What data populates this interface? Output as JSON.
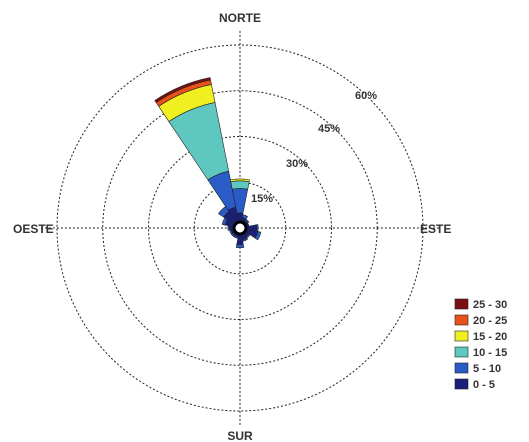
{
  "chart_data": {
    "type": "wind-rose",
    "directions": {
      "north": "NORTE",
      "east": "ESTE",
      "south": "SUR",
      "west": "OESTE"
    },
    "ring_labels": [
      "15%",
      "30%",
      "45%",
      "60%"
    ],
    "ring_values": [
      15,
      30,
      45,
      60
    ],
    "legend": [
      {
        "label": "25 - 30",
        "color": "#7a1010"
      },
      {
        "label": "20 - 25",
        "color": "#e8521a"
      },
      {
        "label": "15 - 20",
        "color": "#f0f020"
      },
      {
        "label": "10 - 15",
        "color": "#5ec8c0"
      },
      {
        "label": "5 - 10",
        "color": "#2a5cc8"
      },
      {
        "label": "0 - 5",
        "color": "#1a1f7a"
      }
    ],
    "sectors": [
      {
        "dir_deg": 337.5,
        "bands": [
          6,
          12,
          23,
          6,
          1.5,
          0.8
        ]
      },
      {
        "dir_deg": 0,
        "bands": [
          4,
          8,
          2.5,
          0.6,
          0,
          0
        ]
      },
      {
        "dir_deg": 22.5,
        "bands": [
          2.5,
          1,
          0,
          0,
          0,
          0
        ]
      },
      {
        "dir_deg": 45,
        "bands": [
          2,
          0.5,
          0,
          0,
          0,
          0
        ]
      },
      {
        "dir_deg": 67.5,
        "bands": [
          2,
          0,
          0,
          0,
          0,
          0
        ]
      },
      {
        "dir_deg": 90,
        "bands": [
          4.5,
          0.5,
          0,
          0,
          0,
          0
        ]
      },
      {
        "dir_deg": 112.5,
        "bands": [
          5,
          1,
          0,
          0,
          0,
          0
        ]
      },
      {
        "dir_deg": 135,
        "bands": [
          2.5,
          0.5,
          0,
          0,
          0,
          0
        ]
      },
      {
        "dir_deg": 157.5,
        "bands": [
          3,
          0.5,
          0,
          0,
          0,
          0
        ]
      },
      {
        "dir_deg": 180,
        "bands": [
          4.5,
          1,
          0,
          0,
          0,
          0
        ]
      },
      {
        "dir_deg": 202.5,
        "bands": [
          2,
          0.5,
          0,
          0,
          0,
          0
        ]
      },
      {
        "dir_deg": 225,
        "bands": [
          2,
          0.5,
          0,
          0,
          0,
          0
        ]
      },
      {
        "dir_deg": 247.5,
        "bands": [
          2,
          0.5,
          0,
          0,
          0,
          0
        ]
      },
      {
        "dir_deg": 270,
        "bands": [
          2.5,
          0.5,
          0,
          0,
          0,
          0
        ]
      },
      {
        "dir_deg": 292.5,
        "bands": [
          4,
          1,
          0,
          0,
          0,
          0
        ]
      },
      {
        "dir_deg": 315,
        "bands": [
          5.5,
          2,
          0,
          0,
          0,
          0
        ]
      }
    ],
    "band_colors": [
      "#1a1f7a",
      "#2a5cc8",
      "#5ec8c0",
      "#f0f020",
      "#e8521a",
      "#7a1010"
    ]
  }
}
